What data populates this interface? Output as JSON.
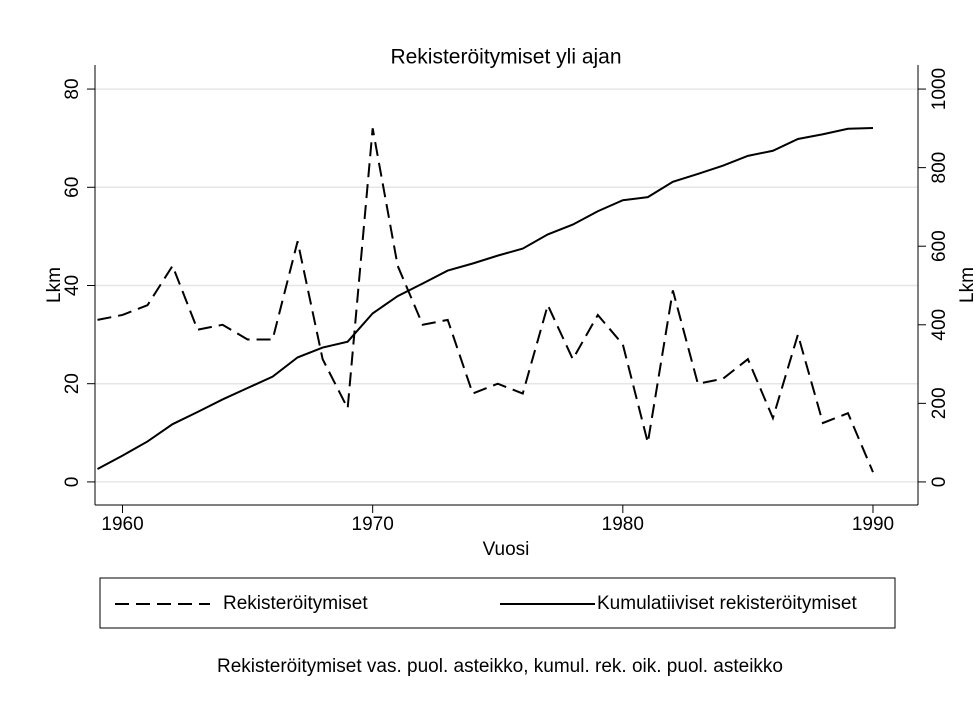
{
  "chart_data": {
    "type": "line",
    "title": "Rekisteröitymiset yli ajan",
    "x_label": "Vuosi",
    "y_label": "Lkm",
    "y2_label": "Lkm",
    "note": "Rekisteröitymiset vas. puol. asteikko, kumul. rek. oik. puol. asteikko",
    "x": [
      1959,
      1960,
      1961,
      1962,
      1963,
      1964,
      1965,
      1966,
      1967,
      1968,
      1969,
      1970,
      1971,
      1972,
      1973,
      1974,
      1975,
      1976,
      1977,
      1978,
      1979,
      1980,
      1981,
      1982,
      1983,
      1984,
      1985,
      1986,
      1987,
      1988,
      1989,
      1990
    ],
    "series": [
      {
        "name": "Rekisteröitymiset",
        "color": "#000000",
        "dashed": true,
        "values": [
          33,
          34,
          36,
          44,
          31,
          32,
          29,
          29,
          49,
          25,
          15,
          72,
          44,
          32,
          33,
          18,
          20,
          18,
          36,
          25,
          34,
          28,
          8,
          39,
          20,
          21,
          25,
          13,
          30,
          12,
          14,
          2
        ]
      },
      {
        "name": "Kumulatiiviset rekisteröitymiset",
        "color": "#000000",
        "dashed": false,
        "axis": "y2",
        "values": [
          33,
          67,
          103,
          147,
          178,
          210,
          239,
          268,
          317,
          342,
          357,
          429,
          473,
          505,
          538,
          556,
          576,
          594,
          630,
          655,
          689,
          717,
          725,
          764,
          784,
          805,
          830,
          843,
          873,
          885,
          899,
          901
        ]
      }
    ],
    "xlim": [
      1958.9,
      1991.8
    ],
    "xticks": [
      1960,
      1970,
      1980,
      1990
    ],
    "ylim": [
      -4.7,
      84.9
    ],
    "yticks": [
      0,
      20,
      40,
      60,
      80
    ],
    "y2lim": [
      -58.75,
      1061.25
    ],
    "y2ticks": [
      0,
      200,
      400,
      600,
      800,
      1000
    ],
    "grid": true,
    "legend": "bottom"
  }
}
